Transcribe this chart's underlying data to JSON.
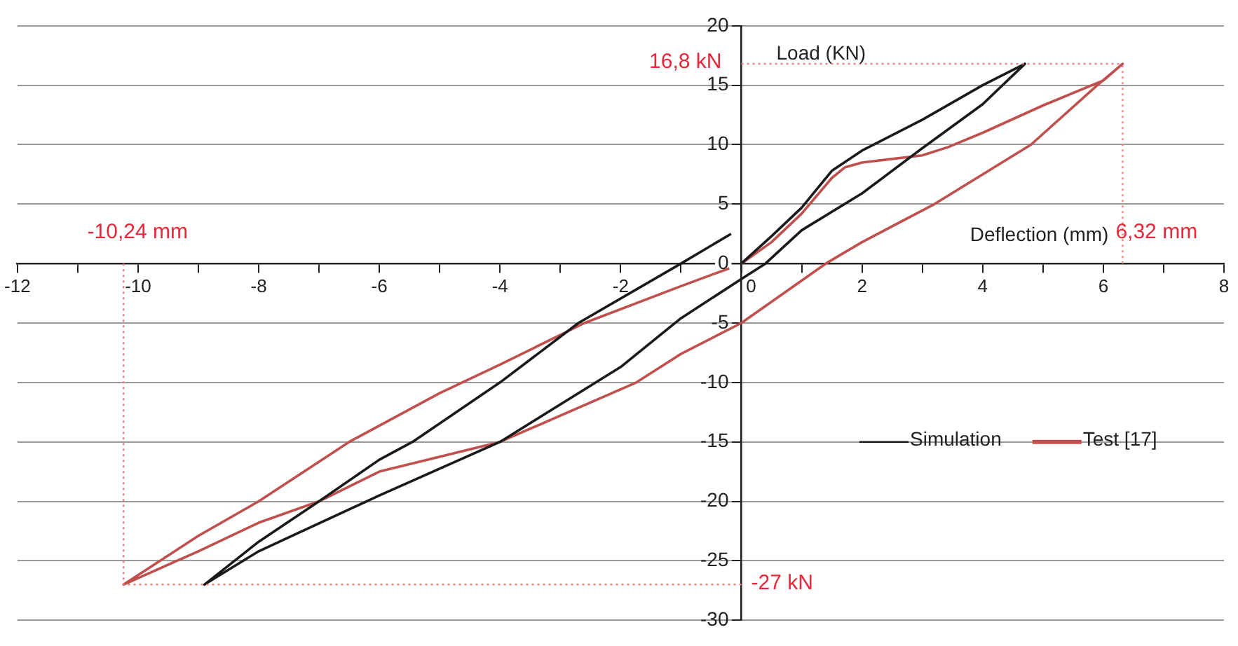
{
  "chart_data": {
    "type": "line",
    "xlabel": "Deflection (mm)",
    "ylabel": "Load (KN)",
    "xlim": [
      -12,
      8
    ],
    "xticks": [
      -12,
      {
        "value": -11,
        "label": null
      },
      -10,
      {
        "value": -9,
        "label": null
      },
      -8,
      {
        "value": -7,
        "label": null
      },
      -6,
      {
        "value": -5,
        "label": null
      },
      -4,
      {
        "value": -3,
        "label": null
      },
      -2,
      {
        "value": -1,
        "label": null
      },
      0,
      {
        "value": 1,
        "label": null
      },
      2,
      {
        "value": 3,
        "label": null
      },
      4,
      {
        "value": 5,
        "label": null
      },
      6,
      {
        "value": 7,
        "label": null
      },
      8
    ],
    "ylim": [
      -30,
      20
    ],
    "yticks": [
      -30,
      -25,
      -20,
      -15,
      -10,
      -5,
      0,
      5,
      10,
      15,
      20
    ],
    "grid": "y",
    "legend": "right",
    "marker": "none",
    "line_style": "solid",
    "series": [
      {
        "name": "Simulation",
        "color": "#1a1a1a",
        "x": [
          0,
          0.5,
          1,
          1.5,
          2,
          3,
          4,
          4.7,
          4,
          3,
          2,
          1,
          0.4,
          0,
          -1,
          -2,
          -4,
          -6,
          -8,
          -8.9,
          -8,
          -7,
          -6,
          -5.45,
          -4,
          -2.7,
          -1,
          -0.17
        ],
        "values": [
          0,
          2.3,
          4.7,
          7.8,
          9.5,
          12.1,
          15,
          16.8,
          13.4,
          9.7,
          5.9,
          2.8,
          0,
          -1.3,
          -4.6,
          -8.7,
          -15,
          -19.5,
          -24.2,
          -27,
          -23.4,
          -20,
          -16.5,
          -15,
          -10,
          -5,
          0,
          2.5
        ]
      },
      {
        "name": "Test [17]",
        "color": "#c0504d",
        "x": [
          0,
          0.5,
          1,
          1.5,
          1.72,
          2,
          3,
          3.43,
          4,
          5,
          6,
          6.32,
          5.9,
          4.8,
          3.2,
          2,
          1.4,
          0,
          -1,
          -1.74,
          -4,
          -6,
          -7,
          -8,
          -9,
          -10.24,
          -9,
          -8,
          -6.5,
          -5,
          -4,
          -2.6,
          -1,
          -0.2
        ],
        "values": [
          0,
          1.8,
          4.2,
          7.2,
          8.1,
          8.5,
          9.1,
          9.8,
          11,
          13.3,
          15.4,
          16.8,
          15,
          10,
          5,
          1.8,
          0,
          -5,
          -7.6,
          -10,
          -15,
          -17.5,
          -20,
          -21.8,
          -24.2,
          -27,
          -22.9,
          -20,
          -15,
          -10.9,
          -8.5,
          -5,
          -1.9,
          -0.4
        ]
      }
    ],
    "ref_lines": [
      {
        "axis": "y",
        "value": 16.8,
        "label": "16,8 kN",
        "color": "#f08080",
        "line_style": "dotted"
      },
      {
        "axis": "x",
        "value": 6.32,
        "label": "6,32 mm",
        "color": "#f08080",
        "line_style": "dotted"
      },
      {
        "axis": "x",
        "value": -10.24,
        "label": "-10,24 mm",
        "color": "#f08080",
        "line_style": "dotted"
      },
      {
        "axis": "y",
        "value": -27,
        "label": "-27 kN",
        "color": "#f08080",
        "line_style": "dotted"
      }
    ]
  }
}
